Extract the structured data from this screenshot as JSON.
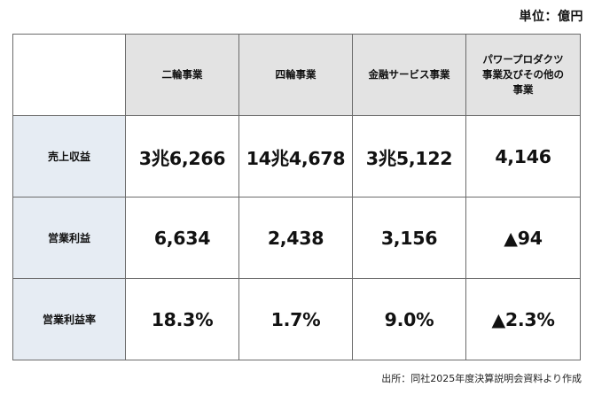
{
  "unit_label": "単位：億円",
  "table": {
    "corner": "",
    "columns": [
      "二輪事業",
      "四輪事業",
      "金融サービス事業",
      "パワープロダクツ\n事業及びその他の\n事業"
    ],
    "rows": [
      {
        "label": "売上収益",
        "values": [
          "3兆6,266",
          "14兆4,678",
          "3兆5,122",
          "4,146"
        ]
      },
      {
        "label": "営業利益",
        "values": [
          "6,634",
          "2,438",
          "3,156",
          "▲94"
        ]
      },
      {
        "label": "営業利益率",
        "values": [
          "18.3%",
          "1.7%",
          "9.0%",
          "▲2.3%"
        ]
      }
    ]
  },
  "source_note": "出所：同社2025年度決算説明会資料より作成"
}
